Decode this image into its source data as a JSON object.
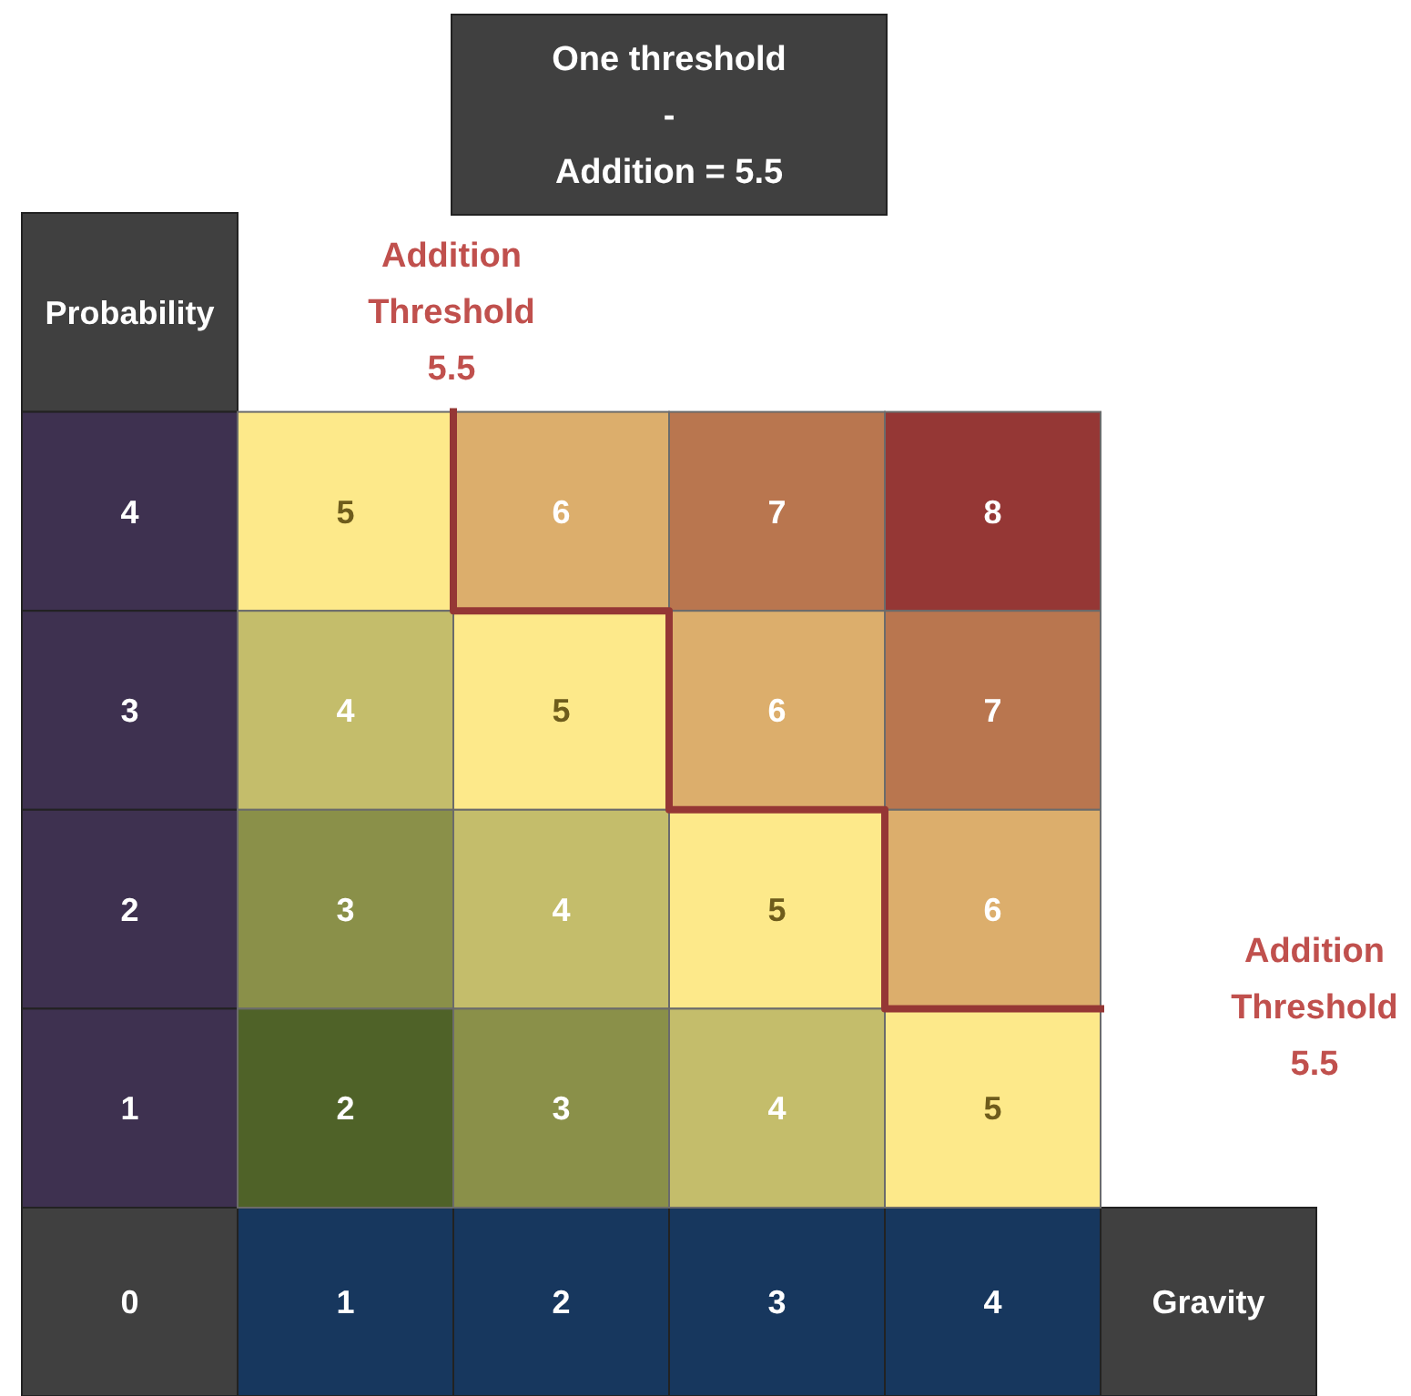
{
  "chart_data": {
    "type": "heatmap",
    "title": "One threshold\n-\nAddition = 5.5",
    "xlabel": "Gravity",
    "ylabel": "Probability",
    "categories": [
      "1",
      "2",
      "3",
      "4"
    ],
    "y_categories": [
      "4",
      "3",
      "2",
      "1"
    ],
    "cells": [
      [
        5,
        6,
        7,
        8
      ],
      [
        4,
        5,
        6,
        7
      ],
      [
        3,
        4,
        5,
        6
      ],
      [
        2,
        3,
        4,
        5
      ]
    ],
    "data_labels": true,
    "annotations": [
      "0",
      "Addition\nThreshold\n5.5",
      "Addition\nThreshold\n5.5"
    ]
  }
}
